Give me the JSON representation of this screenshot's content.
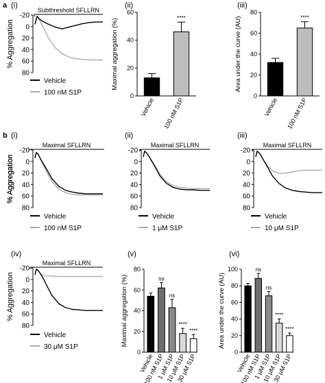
{
  "figure": {
    "sections": [
      {
        "letter": "a",
        "panels": [
          "(i)",
          "(ii)",
          "(iii)"
        ]
      },
      {
        "letter": "b",
        "panels": [
          "(i)",
          "(ii)",
          "(iii)",
          "(iv)",
          "(v)",
          "(vi)"
        ]
      }
    ]
  },
  "colors": {
    "vehicle": "#000000",
    "s1p": "#aaaaaa",
    "bar_black": "#000000",
    "bar_grey": "#bdbdbd",
    "bar_darkgrey": "#6e6e6e",
    "bar_midgrey": "#8a8a8a",
    "bar_lightgrey": "#d9d9d9",
    "bar_white": "#ffffff"
  },
  "chart_data": [
    {
      "id": "a-i",
      "section": "a",
      "panel": "(i)",
      "type": "line",
      "stimulus": "Subthreshold SFLLRN",
      "ylabel": "% Aggregation",
      "yticks": [
        "-20",
        "0",
        "20",
        "40",
        "60",
        "80"
      ],
      "ylim": [
        -20,
        80
      ],
      "y_inverted": true,
      "series": [
        {
          "name": "Vehicle",
          "color": "#000000",
          "x": [
            0,
            0.03,
            0.06,
            0.1,
            0.15,
            0.2,
            0.3,
            0.4,
            0.5,
            0.6,
            0.7,
            0.8,
            0.9,
            1.0
          ],
          "y": [
            -4,
            -18,
            -14,
            -10,
            -7,
            -4,
            1,
            4,
            1,
            -2,
            -5,
            -7,
            -8,
            -8
          ]
        },
        {
          "name": "100 nM S1P",
          "color": "#aaaaaa",
          "x": [
            0,
            0.03,
            0.06,
            0.1,
            0.15,
            0.2,
            0.3,
            0.4,
            0.5,
            0.6,
            0.7,
            0.8,
            0.9,
            1.0
          ],
          "y": [
            -4,
            -18,
            -13,
            -4,
            8,
            20,
            37,
            47,
            53,
            56,
            57,
            58,
            58,
            58
          ]
        }
      ]
    },
    {
      "id": "a-ii",
      "section": "a",
      "panel": "(ii)",
      "type": "bar",
      "ylabel": "Maximal aggregation (%)",
      "ylim": [
        0,
        60
      ],
      "yticks": [
        "0",
        "20",
        "40",
        "60"
      ],
      "categories": [
        "Vehicle",
        "100 nM S1P"
      ],
      "values": [
        13,
        46
      ],
      "errors": [
        3,
        7
      ],
      "fills": [
        "#000000",
        "#bdbdbd"
      ],
      "significance": [
        "",
        "****"
      ]
    },
    {
      "id": "a-iii",
      "section": "a",
      "panel": "(iii)",
      "type": "bar",
      "ylabel": "Area under the curve (AU)",
      "ylim": [
        0,
        80
      ],
      "yticks": [
        "0",
        "20",
        "40",
        "60",
        "80"
      ],
      "categories": [
        "Vehicle",
        "100 nM S1P"
      ],
      "values": [
        32,
        65
      ],
      "errors": [
        4,
        6
      ],
      "fills": [
        "#000000",
        "#bdbdbd"
      ],
      "significance": [
        "",
        "****"
      ]
    },
    {
      "id": "b-i",
      "section": "b",
      "panel": "(i)",
      "type": "line",
      "stimulus": "Maximal SFLLRN",
      "ylabel": "% Aggregation",
      "yticks": [
        "-20",
        "0",
        "20",
        "40",
        "60",
        "80"
      ],
      "ylim": [
        -20,
        80
      ],
      "y_inverted": true,
      "series": [
        {
          "name": "Vehicle",
          "color": "#000000",
          "x": [
            0,
            0.02,
            0.05,
            0.08,
            0.12,
            0.18,
            0.25,
            0.35,
            0.45,
            0.55,
            0.65,
            0.75,
            0.85,
            1.0
          ],
          "y": [
            -6,
            -16,
            -12,
            -5,
            3,
            15,
            30,
            43,
            50,
            53,
            55,
            56,
            56,
            56
          ]
        },
        {
          "name": "100 nM S1P",
          "color": "#aaaaaa",
          "x": [
            0,
            0.02,
            0.05,
            0.08,
            0.12,
            0.18,
            0.25,
            0.35,
            0.45,
            0.55,
            0.65,
            0.75,
            0.85,
            1.0
          ],
          "y": [
            -6,
            -16,
            -12,
            -4,
            6,
            20,
            35,
            48,
            54,
            57,
            58,
            58,
            58,
            58
          ]
        }
      ]
    },
    {
      "id": "b-ii",
      "section": "b",
      "panel": "(ii)",
      "type": "line",
      "stimulus": "Maximal SFLLRN",
      "ylabel": "% Aggregation",
      "yticks": [
        "-20",
        "0",
        "20",
        "40",
        "60",
        "80"
      ],
      "ylim": [
        -20,
        80
      ],
      "y_inverted": true,
      "series": [
        {
          "name": "Vehicle",
          "color": "#000000",
          "x": [
            0,
            0.02,
            0.05,
            0.08,
            0.12,
            0.18,
            0.25,
            0.35,
            0.45,
            0.55,
            0.65,
            0.75,
            0.85,
            1.0
          ],
          "y": [
            -8,
            -18,
            -15,
            -10,
            -2,
            10,
            25,
            38,
            45,
            48,
            49,
            49,
            50,
            50
          ]
        },
        {
          "name": "1 μM S1P",
          "color": "#aaaaaa",
          "x": [
            0,
            0.02,
            0.05,
            0.08,
            0.12,
            0.18,
            0.25,
            0.35,
            0.45,
            0.55,
            0.65,
            0.75,
            0.85,
            1.0
          ],
          "y": [
            -8,
            -18,
            -15,
            -10,
            -3,
            8,
            22,
            35,
            42,
            45,
            46,
            47,
            47,
            47
          ]
        }
      ]
    },
    {
      "id": "b-iii",
      "section": "b",
      "panel": "(iii)",
      "type": "line",
      "stimulus": "Maximal SFLLRN",
      "ylabel": "% Aggregation",
      "yticks": [
        "-20",
        "0",
        "20",
        "40",
        "60",
        "80"
      ],
      "ylim": [
        -20,
        80
      ],
      "y_inverted": true,
      "series": [
        {
          "name": "Vehicle",
          "color": "#000000",
          "x": [
            0,
            0.02,
            0.05,
            0.08,
            0.12,
            0.18,
            0.25,
            0.35,
            0.45,
            0.55,
            0.65,
            0.75,
            0.85,
            1.0
          ],
          "y": [
            -8,
            -18,
            -15,
            -10,
            -2,
            10,
            25,
            38,
            46,
            50,
            52,
            53,
            54,
            54
          ]
        },
        {
          "name": "10 μM S1P",
          "color": "#aaaaaa",
          "x": [
            0,
            0.02,
            0.05,
            0.08,
            0.12,
            0.18,
            0.25,
            0.35,
            0.45,
            0.55,
            0.65,
            0.75,
            0.85,
            1.0
          ],
          "y": [
            -8,
            -18,
            -15,
            -10,
            -2,
            8,
            16,
            21,
            20,
            18,
            16,
            15,
            15,
            15
          ]
        }
      ]
    },
    {
      "id": "b-iv",
      "section": "b",
      "panel": "(iv)",
      "type": "line",
      "stimulus": "Maximal SFLLRN",
      "ylabel": "% Aggregation",
      "yticks": [
        "-20",
        "0",
        "20",
        "40",
        "60",
        "80"
      ],
      "ylim": [
        -20,
        80
      ],
      "y_inverted": true,
      "series": [
        {
          "name": "Vehicle",
          "color": "#000000",
          "x": [
            0,
            0.02,
            0.05,
            0.08,
            0.12,
            0.18,
            0.25,
            0.35,
            0.45,
            0.55,
            0.65,
            0.75,
            0.85,
            1.0
          ],
          "y": [
            -8,
            -18,
            -15,
            -10,
            -2,
            12,
            28,
            42,
            49,
            52,
            53,
            54,
            54,
            54
          ]
        },
        {
          "name": "30 μM S1P",
          "color": "#aaaaaa",
          "x": [
            0,
            0.02,
            0.05,
            0.08,
            0.12,
            0.18,
            0.25,
            0.35,
            0.45,
            0.55,
            0.65,
            0.75,
            0.85,
            1.0
          ],
          "y": [
            -8,
            -18,
            -15,
            -10,
            -7,
            -6,
            -6,
            -5,
            -5,
            -5,
            -5,
            -5,
            -5,
            -5
          ]
        }
      ]
    },
    {
      "id": "b-v",
      "section": "b",
      "panel": "(v)",
      "type": "bar",
      "ylabel": "Maximal aggregation (%)",
      "ylim": [
        0,
        80
      ],
      "yticks": [
        "0",
        "20",
        "40",
        "60",
        "80"
      ],
      "categories": [
        "Vehicle",
        "100 nM S1P",
        "1 μM S1P",
        "10 μM S1P",
        "30 μM S1P"
      ],
      "values": [
        54,
        62,
        43,
        18,
        13
      ],
      "errors": [
        3,
        5,
        8,
        5,
        4
      ],
      "fills": [
        "#000000",
        "#6e6e6e",
        "#8a8a8a",
        "#d9d9d9",
        "#ffffff"
      ],
      "significance": [
        "",
        "ns",
        "ns",
        "****",
        "****"
      ]
    },
    {
      "id": "b-vi",
      "section": "b",
      "panel": "(vi)",
      "type": "bar",
      "ylabel": "Area under the curve (AU)",
      "ylim": [
        0,
        100
      ],
      "yticks": [
        "0",
        "20",
        "40",
        "60",
        "80",
        "100"
      ],
      "categories": [
        "Vehicle",
        "100 nM S1P",
        "1 μM S1P",
        "10 μM S1P",
        "30 μM S1P"
      ],
      "values": [
        80,
        89,
        68,
        35,
        20
      ],
      "errors": [
        3,
        6,
        5,
        5,
        3
      ],
      "fills": [
        "#000000",
        "#6e6e6e",
        "#8a8a8a",
        "#d9d9d9",
        "#ffffff"
      ],
      "significance": [
        "",
        "ns",
        "ns",
        "****",
        "****"
      ]
    }
  ]
}
